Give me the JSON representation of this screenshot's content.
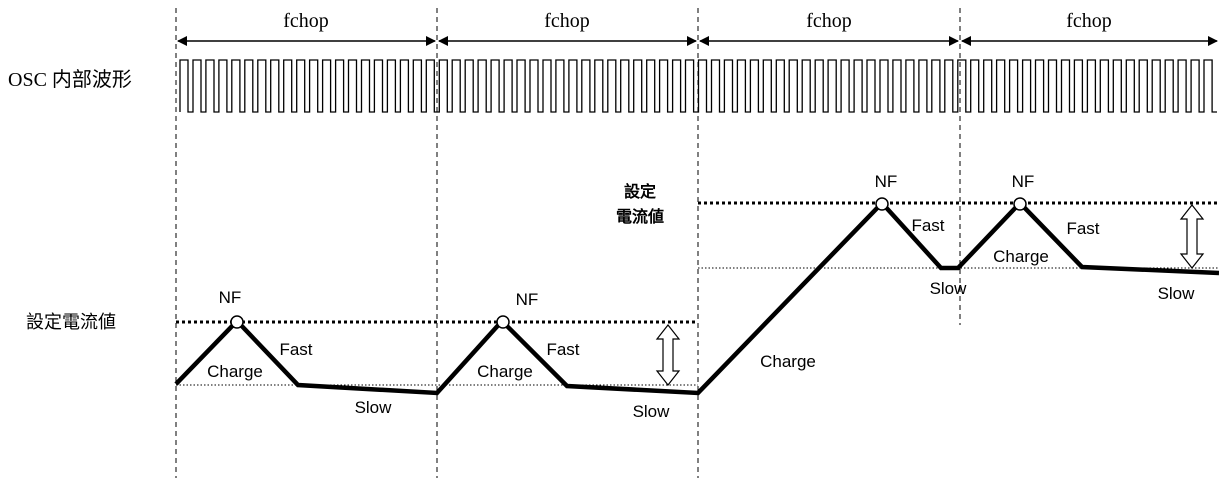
{
  "fchop_label": "fchop",
  "osc_label": "OSC 内部波形",
  "set_current_left": "設定電流値",
  "set_current_right_line1": "設定",
  "set_current_right_line2": "電流値",
  "nf_label": "NF",
  "charge_label": "Charge",
  "fast_label": "Fast",
  "slow_label": "Slow",
  "periods": 4,
  "osc_pulses_per_period": 20,
  "colors": {
    "line": "#000000",
    "background": "#ffffff"
  }
}
